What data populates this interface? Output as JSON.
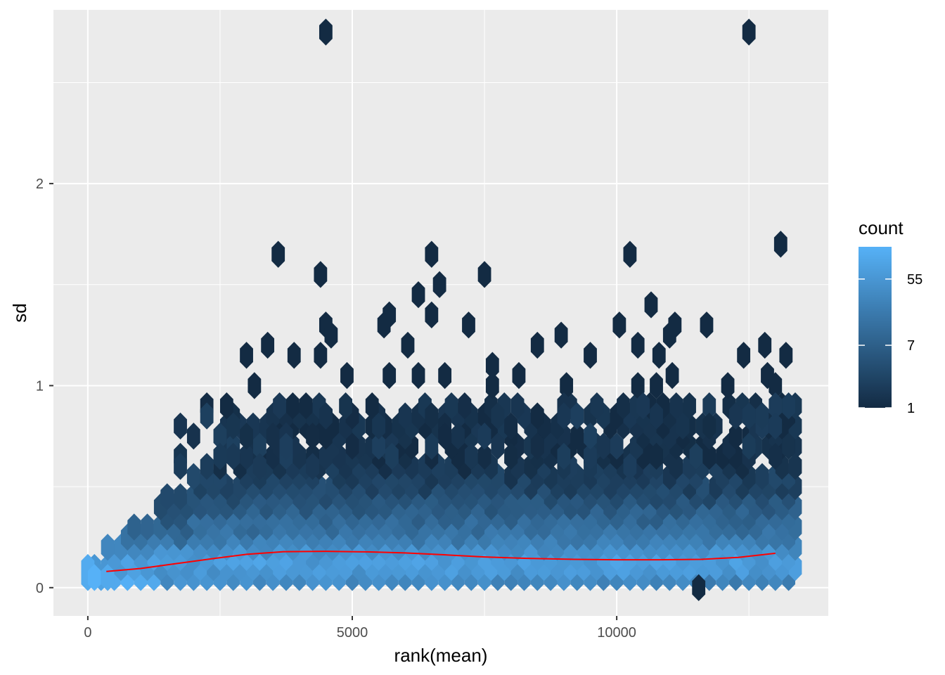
{
  "chart_data": {
    "type": "hexbin",
    "title": "",
    "xlabel": "rank(mean)",
    "ylabel": "sd",
    "xlim": [
      -650,
      14000
    ],
    "ylim": [
      -0.14,
      2.86
    ],
    "x_ticks": [
      0,
      5000,
      10000
    ],
    "x_tick_labels": [
      "0",
      "5000",
      "10000"
    ],
    "y_ticks": [
      0,
      1,
      2
    ],
    "y_tick_labels": [
      "0",
      "1",
      "2"
    ],
    "grid": true,
    "panel_background": "#ebebeb",
    "legend": {
      "title": "count",
      "placement": "right",
      "breaks": [
        1,
        7,
        55
      ],
      "break_labels": [
        "1",
        "7",
        "55"
      ],
      "count_range": [
        1,
        150
      ],
      "scale": "log",
      "low_color": "#132b43",
      "high_color": "#56b1f7"
    },
    "hex_bins": {
      "x_spacing": 250,
      "y_spacing": 0.1,
      "description": "dense band of bins along sd 0.05-0.8 from x≈0 to 13400, counts decreasing with sd",
      "outliers": [
        {
          "x": 4500,
          "sd": 2.75
        },
        {
          "x": 12500,
          "sd": 2.75
        },
        {
          "x": 3600,
          "sd": 1.65
        },
        {
          "x": 6500,
          "sd": 1.65
        },
        {
          "x": 10250,
          "sd": 1.65
        },
        {
          "x": 13100,
          "sd": 1.7
        },
        {
          "x": 4400,
          "sd": 1.55
        },
        {
          "x": 7500,
          "sd": 1.55
        },
        {
          "x": 6650,
          "sd": 1.5
        },
        {
          "x": 6250,
          "sd": 1.45
        },
        {
          "x": 10650,
          "sd": 1.4
        },
        {
          "x": 5700,
          "sd": 1.35
        },
        {
          "x": 6500,
          "sd": 1.35
        },
        {
          "x": 4500,
          "sd": 1.3
        },
        {
          "x": 5600,
          "sd": 1.3
        },
        {
          "x": 7200,
          "sd": 1.3
        },
        {
          "x": 10050,
          "sd": 1.3
        },
        {
          "x": 11100,
          "sd": 1.3
        },
        {
          "x": 11700,
          "sd": 1.3
        },
        {
          "x": 4600,
          "sd": 1.25
        },
        {
          "x": 8950,
          "sd": 1.25
        },
        {
          "x": 11000,
          "sd": 1.25
        },
        {
          "x": 3400,
          "sd": 1.2
        },
        {
          "x": 6050,
          "sd": 1.2
        },
        {
          "x": 8500,
          "sd": 1.2
        },
        {
          "x": 10400,
          "sd": 1.2
        },
        {
          "x": 12800,
          "sd": 1.2
        },
        {
          "x": 3000,
          "sd": 1.15
        },
        {
          "x": 3900,
          "sd": 1.15
        },
        {
          "x": 4400,
          "sd": 1.15
        },
        {
          "x": 9500,
          "sd": 1.15
        },
        {
          "x": 10800,
          "sd": 1.15
        },
        {
          "x": 12400,
          "sd": 1.15
        },
        {
          "x": 13200,
          "sd": 1.15
        },
        {
          "x": 7650,
          "sd": 1.1
        },
        {
          "x": 4900,
          "sd": 1.05
        },
        {
          "x": 5700,
          "sd": 1.05
        },
        {
          "x": 6250,
          "sd": 1.05
        },
        {
          "x": 6750,
          "sd": 1.05
        },
        {
          "x": 8150,
          "sd": 1.05
        },
        {
          "x": 11050,
          "sd": 1.05
        },
        {
          "x": 12850,
          "sd": 1.05
        },
        {
          "x": 3150,
          "sd": 1.0
        },
        {
          "x": 7650,
          "sd": 1.0
        },
        {
          "x": 9050,
          "sd": 1.0
        },
        {
          "x": 10400,
          "sd": 1.0
        },
        {
          "x": 10750,
          "sd": 1.0
        },
        {
          "x": 12100,
          "sd": 1.0
        },
        {
          "x": 13000,
          "sd": 1.0
        },
        {
          "x": 11550,
          "sd": 0.0
        }
      ]
    },
    "smooth_line": {
      "color": "#ff0000",
      "x": [
        350,
        1000,
        1700,
        2400,
        3000,
        3700,
        4500,
        5300,
        6000,
        6700,
        7500,
        8300,
        9200,
        10000,
        10800,
        11600,
        12300,
        13000
      ],
      "y": [
        0.08,
        0.095,
        0.12,
        0.145,
        0.165,
        0.178,
        0.18,
        0.177,
        0.172,
        0.163,
        0.152,
        0.145,
        0.14,
        0.138,
        0.138,
        0.14,
        0.15,
        0.17
      ]
    }
  }
}
